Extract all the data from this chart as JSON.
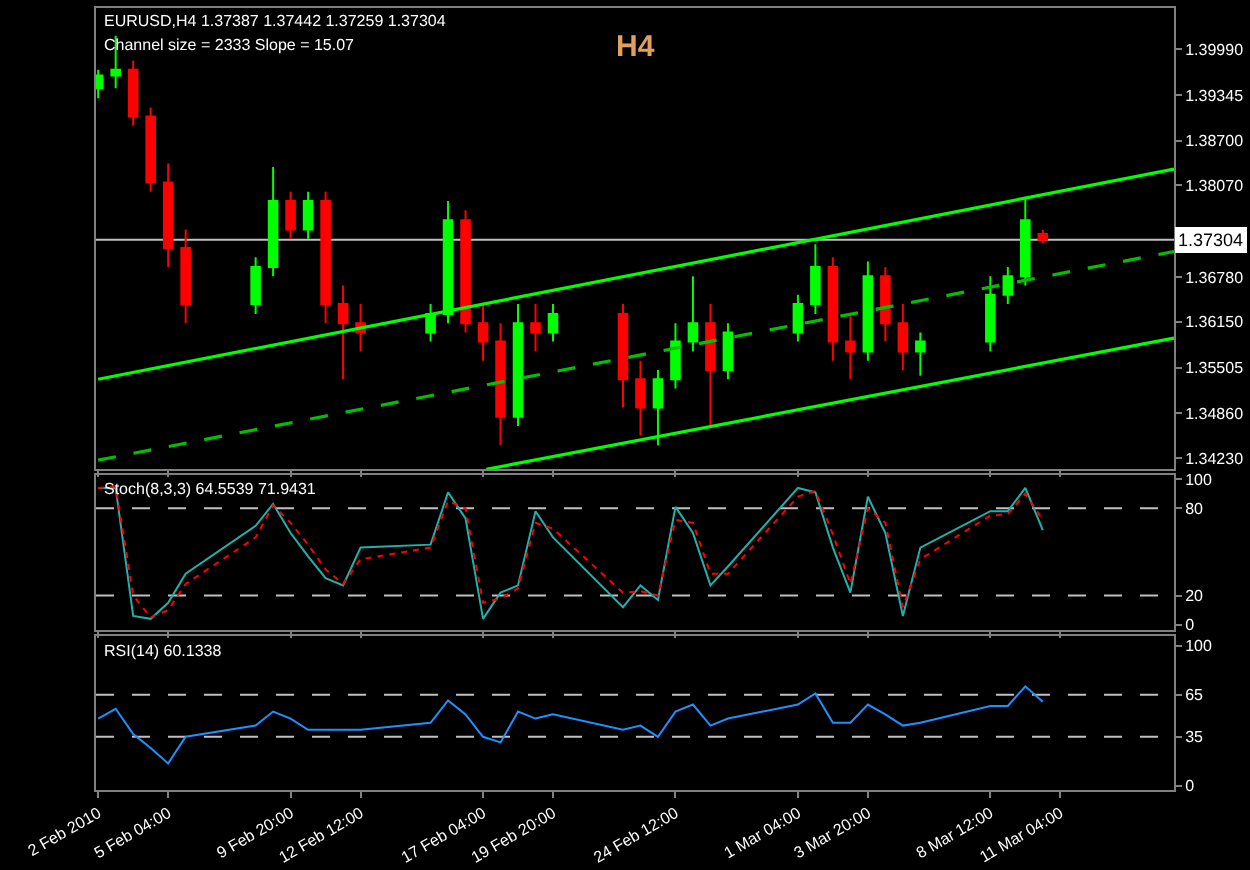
{
  "chart_data": [
    {
      "type": "candlestick",
      "title": "H4",
      "annotations": [
        "EURUSD,H4 1.37387 1.37442 1.37259 1.37304",
        "Channel size = 2333 Slope = 15.07"
      ],
      "x": [
        "2010-02-02T12:00",
        "2010-02-03T04:00",
        "2010-02-03T20:00",
        "2010-02-04T12:00",
        "2010-02-05T04:00",
        "2010-02-05T20:00",
        "2010-02-08T12:00",
        "2010-02-09T04:00",
        "2010-02-09T20:00",
        "2010-02-10T12:00",
        "2010-02-11T04:00",
        "2010-02-11T20:00",
        "2010-02-12T12:00",
        "2010-02-15T04:00",
        "2010-02-15T20:00",
        "2010-02-16T12:00",
        "2010-02-17T04:00",
        "2010-02-17T20:00",
        "2010-02-18T12:00",
        "2010-02-19T04:00",
        "2010-02-19T20:00",
        "2010-02-22T12:00",
        "2010-02-23T04:00",
        "2010-02-23T20:00",
        "2010-02-24T12:00",
        "2010-02-25T04:00",
        "2010-02-25T20:00",
        "2010-02-26T12:00",
        "2010-03-01T04:00",
        "2010-03-01T20:00",
        "2010-03-02T12:00",
        "2010-03-03T04:00",
        "2010-03-03T20:00",
        "2010-03-04T12:00",
        "2010-03-05T04:00",
        "2010-03-05T20:00",
        "2010-03-08T12:00",
        "2010-03-09T04:00",
        "2010-03-09T20:00",
        "2010-03-10T12:00"
      ],
      "ohlc": [
        [
          1.3944,
          1.397,
          1.393,
          1.3962
        ],
        [
          1.3962,
          1.4018,
          1.3944,
          1.397
        ],
        [
          1.397,
          1.3983,
          1.3891,
          1.3904
        ],
        [
          1.3904,
          1.3917,
          1.3798,
          1.3811
        ],
        [
          1.3811,
          1.3838,
          1.3692,
          1.3719
        ],
        [
          1.3719,
          1.3745,
          1.3613,
          1.364
        ],
        [
          1.364,
          1.3706,
          1.3626,
          1.3692
        ],
        [
          1.3692,
          1.3833,
          1.3679,
          1.3785
        ],
        [
          1.3785,
          1.3798,
          1.3732,
          1.3745
        ],
        [
          1.3745,
          1.3798,
          1.3732,
          1.3785
        ],
        [
          1.3785,
          1.3798,
          1.3613,
          1.364
        ],
        [
          1.364,
          1.3666,
          1.3534,
          1.3613
        ],
        [
          1.3613,
          1.364,
          1.3573,
          1.36
        ],
        [
          1.36,
          1.364,
          1.3587,
          1.3626
        ],
        [
          1.3626,
          1.3785,
          1.3613,
          1.3758
        ],
        [
          1.3758,
          1.3772,
          1.36,
          1.3613
        ],
        [
          1.3613,
          1.364,
          1.356,
          1.3587
        ],
        [
          1.3587,
          1.3613,
          1.3441,
          1.3481
        ],
        [
          1.3481,
          1.364,
          1.3468,
          1.3613
        ],
        [
          1.3613,
          1.364,
          1.3573,
          1.36
        ],
        [
          1.36,
          1.364,
          1.3587,
          1.3626
        ],
        [
          1.3626,
          1.364,
          1.3494,
          1.3534
        ],
        [
          1.3534,
          1.356,
          1.3455,
          1.3494
        ],
        [
          1.3494,
          1.3547,
          1.3441,
          1.3534
        ],
        [
          1.3534,
          1.3613,
          1.3521,
          1.3587
        ],
        [
          1.3587,
          1.3679,
          1.3573,
          1.3613
        ],
        [
          1.3613,
          1.364,
          1.3468,
          1.3547
        ],
        [
          1.3547,
          1.3613,
          1.3534,
          1.36
        ],
        [
          1.36,
          1.3653,
          1.3587,
          1.364
        ],
        [
          1.364,
          1.3724,
          1.3626,
          1.3692
        ],
        [
          1.3692,
          1.3706,
          1.356,
          1.3587
        ],
        [
          1.3587,
          1.3626,
          1.3534,
          1.3573
        ],
        [
          1.3573,
          1.37,
          1.356,
          1.3679
        ],
        [
          1.3679,
          1.3692,
          1.3587,
          1.3613
        ],
        [
          1.3613,
          1.364,
          1.3547,
          1.3573
        ],
        [
          1.3573,
          1.36,
          1.3539,
          1.3587
        ],
        [
          1.3587,
          1.3679,
          1.3573,
          1.3653
        ],
        [
          1.3653,
          1.3692,
          1.364,
          1.3679
        ],
        [
          1.3679,
          1.379,
          1.3666,
          1.3758
        ],
        [
          1.37387,
          1.37442,
          1.37259,
          1.37304
        ]
      ],
      "colors": [
        "#00ff00",
        "#00ff00",
        "#ff0000",
        "#ff0000",
        "#ff0000",
        "#ff0000",
        "#00ff00",
        "#00ff00",
        "#ff0000",
        "#00ff00",
        "#ff0000",
        "#ff0000",
        "#ff0000",
        "#00ff00",
        "#00ff00",
        "#ff0000",
        "#ff0000",
        "#ff0000",
        "#00ff00",
        "#ff0000",
        "#00ff00",
        "#ff0000",
        "#ff0000",
        "#00ff00",
        "#00ff00",
        "#00ff00",
        "#ff0000",
        "#00ff00",
        "#00ff00",
        "#00ff00",
        "#ff0000",
        "#ff0000",
        "#00ff00",
        "#ff0000",
        "#ff0000",
        "#00ff00",
        "#00ff00",
        "#00ff00",
        "#00ff00",
        "#ff0000"
      ],
      "series": [
        {
          "type": "line",
          "x": [
            "2010-02-02T12:00",
            "2010-03-15T12:00"
          ],
          "values": [
            1.3534,
            1.383
          ],
          "color": "#00ff00",
          "line_style": "solid"
        },
        {
          "type": "line",
          "x": [
            "2010-02-02T12:00",
            "2010-03-15T12:00"
          ],
          "values": [
            1.342,
            1.3714
          ],
          "color": "#00c000",
          "line_style": "dashed"
        },
        {
          "type": "line",
          "x": [
            "2010-02-17T07:00",
            "2010-03-15T12:00"
          ],
          "values": [
            1.3407,
            1.3592
          ],
          "color": "#00ff00",
          "line_style": "solid"
        }
      ],
      "ref_lines": [
        {
          "axis": "y",
          "value": 1.37304,
          "label": "1.37304",
          "color": "#c0c0c0",
          "line_style": "solid"
        }
      ],
      "xlim": [
        "2010-02-02T10:00",
        "2010-03-15T12:00"
      ],
      "ylim": [
        1.3407,
        1.4057
      ],
      "xticks": [
        {
          "value": "2010-02-02T12:00",
          "label": null
        },
        {
          "value": "2010-02-05T04:00",
          "label": null
        },
        {
          "value": "2010-02-09T20:00",
          "label": null
        },
        {
          "value": "2010-02-12T12:00",
          "label": null
        },
        {
          "value": "2010-02-17T04:00",
          "label": null
        },
        {
          "value": "2010-02-19T20:00",
          "label": null
        },
        {
          "value": "2010-02-24T12:00",
          "label": null
        },
        {
          "value": "2010-03-01T04:00",
          "label": null
        },
        {
          "value": "2010-03-03T20:00",
          "label": null
        },
        {
          "value": "2010-03-08T12:00",
          "label": null
        },
        {
          "value": "2010-03-11T04:00",
          "label": null
        }
      ],
      "yticks": [
        {
          "value": 1.3423,
          "label": "1.34230"
        },
        {
          "value": 1.3486,
          "label": "1.34860"
        },
        {
          "value": 1.35505,
          "label": "1.35505"
        },
        {
          "value": 1.3615,
          "label": "1.36150"
        },
        {
          "value": 1.3678,
          "label": "1.36780"
        },
        {
          "value": 1.3807,
          "label": "1.38070"
        },
        {
          "value": 1.387,
          "label": "1.38700"
        },
        {
          "value": 1.39345,
          "label": "1.39345"
        },
        {
          "value": 1.3999,
          "label": "1.39990"
        }
      ],
      "tick_labels": "y",
      "grid": false
    },
    {
      "type": "line",
      "title": "Stoch(8,3,3) 64.5539 71.9431",
      "x": [
        "2010-02-02T12:00",
        "2010-02-03T04:00",
        "2010-02-03T20:00",
        "2010-02-04T12:00",
        "2010-02-05T04:00",
        "2010-02-05T20:00",
        "2010-02-08T12:00",
        "2010-02-09T04:00",
        "2010-02-09T20:00",
        "2010-02-10T12:00",
        "2010-02-11T04:00",
        "2010-02-11T20:00",
        "2010-02-12T12:00",
        "2010-02-15T04:00",
        "2010-02-15T20:00",
        "2010-02-16T12:00",
        "2010-02-17T04:00",
        "2010-02-17T20:00",
        "2010-02-18T12:00",
        "2010-02-19T04:00",
        "2010-02-19T20:00",
        "2010-02-22T12:00",
        "2010-02-23T04:00",
        "2010-02-23T20:00",
        "2010-02-24T12:00",
        "2010-02-25T04:00",
        "2010-02-25T20:00",
        "2010-02-26T12:00",
        "2010-03-01T04:00",
        "2010-03-01T20:00",
        "2010-03-02T12:00",
        "2010-03-03T04:00",
        "2010-03-03T20:00",
        "2010-03-04T12:00",
        "2010-03-05T04:00",
        "2010-03-05T20:00",
        "2010-03-08T12:00",
        "2010-03-09T04:00",
        "2010-03-09T20:00",
        "2010-03-10T12:00"
      ],
      "series": [
        {
          "color": "#20b2aa",
          "line_style": "solid",
          "values": [
            94,
            94,
            6,
            4,
            15,
            35,
            68,
            83,
            63,
            47,
            32,
            27,
            53,
            55,
            91,
            73,
            4,
            22,
            27,
            78,
            60,
            12,
            27,
            17,
            81,
            63,
            27,
            40,
            94,
            91,
            53,
            22,
            88,
            63,
            6,
            53,
            78,
            78,
            94,
            65
          ]
        },
        {
          "color": "#ff0000",
          "line_style": "dotted",
          "values": [
            94,
            95,
            20,
            5,
            10,
            28,
            60,
            82,
            70,
            55,
            38,
            28,
            45,
            53,
            85,
            80,
            15,
            18,
            25,
            70,
            66,
            22,
            23,
            20,
            72,
            70,
            35,
            35,
            88,
            92,
            62,
            28,
            80,
            70,
            12,
            45,
            75,
            76,
            90,
            72
          ]
        }
      ],
      "ref_lines": [
        {
          "axis": "y",
          "value": 20,
          "color": "#c0c0c0",
          "line_style": "dashed"
        },
        {
          "axis": "y",
          "value": 80,
          "color": "#c0c0c0",
          "line_style": "dashed"
        }
      ],
      "xlim": [
        "2010-02-02T10:00",
        "2010-03-15T12:00"
      ],
      "ylim": [
        -4,
        103
      ],
      "xticks": [
        {
          "value": "2010-02-02T12:00",
          "label": null
        },
        {
          "value": "2010-02-05T04:00",
          "label": null
        },
        {
          "value": "2010-02-09T20:00",
          "label": null
        },
        {
          "value": "2010-02-12T12:00",
          "label": null
        },
        {
          "value": "2010-02-17T04:00",
          "label": null
        },
        {
          "value": "2010-02-19T20:00",
          "label": null
        },
        {
          "value": "2010-02-24T12:00",
          "label": null
        },
        {
          "value": "2010-03-01T04:00",
          "label": null
        },
        {
          "value": "2010-03-03T20:00",
          "label": null
        },
        {
          "value": "2010-03-08T12:00",
          "label": null
        },
        {
          "value": "2010-03-11T04:00",
          "label": null
        }
      ],
      "yticks": [
        0,
        20,
        80,
        100
      ],
      "tick_labels": "y",
      "grid": false,
      "marker": "none"
    },
    {
      "type": "line",
      "title": "RSI(14) 60.1338",
      "x": [
        "2010-02-02T12:00",
        "2010-02-03T04:00",
        "2010-02-03T20:00",
        "2010-02-04T12:00",
        "2010-02-05T04:00",
        "2010-02-05T20:00",
        "2010-02-08T12:00",
        "2010-02-09T04:00",
        "2010-02-09T20:00",
        "2010-02-10T12:00",
        "2010-02-11T04:00",
        "2010-02-11T20:00",
        "2010-02-12T12:00",
        "2010-02-15T04:00",
        "2010-02-15T20:00",
        "2010-02-16T12:00",
        "2010-02-17T04:00",
        "2010-02-17T20:00",
        "2010-02-18T12:00",
        "2010-02-19T04:00",
        "2010-02-19T20:00",
        "2010-02-22T12:00",
        "2010-02-23T04:00",
        "2010-02-23T20:00",
        "2010-02-24T12:00",
        "2010-02-25T04:00",
        "2010-02-25T20:00",
        "2010-02-26T12:00",
        "2010-03-01T04:00",
        "2010-03-01T20:00",
        "2010-03-02T12:00",
        "2010-03-03T04:00",
        "2010-03-03T20:00",
        "2010-03-04T12:00",
        "2010-03-05T04:00",
        "2010-03-05T20:00",
        "2010-03-08T12:00",
        "2010-03-09T04:00",
        "2010-03-09T20:00",
        "2010-03-10T12:00"
      ],
      "series": [
        {
          "color": "#1e90ff",
          "line_style": "solid",
          "values": [
            48,
            55,
            37,
            27,
            16,
            35,
            43,
            53,
            48,
            40,
            40,
            40,
            40,
            45,
            61,
            51,
            35,
            31,
            53,
            48,
            51,
            40,
            43,
            35,
            53,
            58,
            43,
            48,
            58,
            66,
            45,
            45,
            58,
            51,
            43,
            45,
            57,
            57,
            71,
            60
          ]
        }
      ],
      "ref_lines": [
        {
          "axis": "y",
          "value": 35,
          "color": "#c0c0c0",
          "line_style": "dashed"
        },
        {
          "axis": "y",
          "value": 65,
          "color": "#c0c0c0",
          "line_style": "dashed"
        }
      ],
      "xlim": [
        "2010-02-02T10:00",
        "2010-03-15T12:00"
      ],
      "ylim": [
        -3,
        107
      ],
      "xticks": [
        {
          "value": "2010-02-02T12:00",
          "label": "2 Feb 2010"
        },
        {
          "value": "2010-02-05T04:00",
          "label": "5 Feb 04:00"
        },
        {
          "value": "2010-02-09T20:00",
          "label": "9 Feb 20:00"
        },
        {
          "value": "2010-02-12T12:00",
          "label": "12 Feb 12:00"
        },
        {
          "value": "2010-02-17T04:00",
          "label": "17 Feb 04:00"
        },
        {
          "value": "2010-02-19T20:00",
          "label": "19 Feb 20:00"
        },
        {
          "value": "2010-02-24T12:00",
          "label": "24 Feb 12:00"
        },
        {
          "value": "2010-03-01T04:00",
          "label": "1 Mar 04:00"
        },
        {
          "value": "2010-03-03T20:00",
          "label": "3 Mar 20:00"
        },
        {
          "value": "2010-03-08T12:00",
          "label": "8 Mar 12:00"
        },
        {
          "value": "2010-03-11T04:00",
          "label": "11 Mar 04:00"
        }
      ],
      "yticks": [
        0,
        35,
        65,
        100
      ],
      "grid": false,
      "marker": "none"
    }
  ]
}
